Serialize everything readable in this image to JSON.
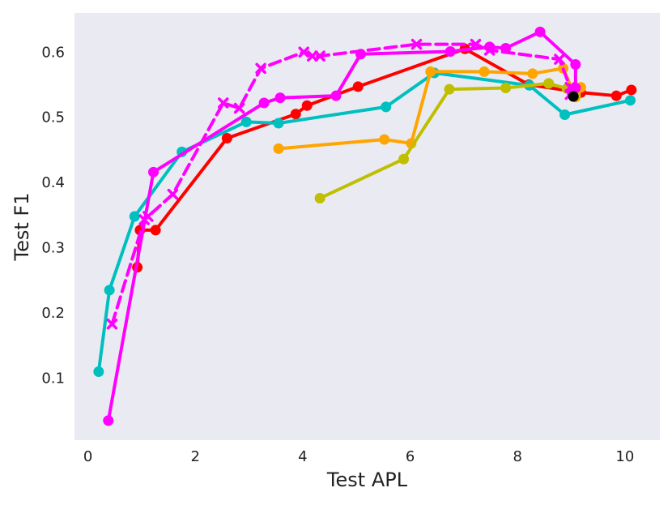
{
  "chart_data": {
    "type": "line",
    "title": "",
    "xlabel": "Test APL",
    "ylabel": "Test F1",
    "xlim": [
      -0.25,
      10.65
    ],
    "ylim": [
      0.005,
      0.66
    ],
    "xticks": [
      0,
      2,
      4,
      6,
      8,
      10
    ],
    "yticks": [
      0.1,
      0.2,
      0.3,
      0.4,
      0.5,
      0.6
    ],
    "xtick_labels": [
      "0",
      "2",
      "4",
      "6",
      "8",
      "10"
    ],
    "ytick_labels": [
      "0.1",
      "0.2",
      "0.3",
      "0.4",
      "0.5",
      "0.6"
    ],
    "grid": false,
    "background": "#eaeaf2",
    "series": [
      {
        "color": "#ff0000",
        "marker": "circle",
        "dash": "solid",
        "points": [
          [
            0.92,
            0.27
          ],
          [
            0.97,
            0.327
          ],
          [
            1.26,
            0.327
          ],
          [
            2.59,
            0.468
          ],
          [
            3.87,
            0.505
          ],
          [
            4.08,
            0.518
          ],
          [
            5.03,
            0.547
          ],
          [
            7.02,
            0.605
          ],
          [
            8.21,
            0.55
          ],
          [
            9.18,
            0.538
          ],
          [
            9.84,
            0.533
          ],
          [
            10.12,
            0.542
          ]
        ]
      },
      {
        "color": "#00bfbf",
        "marker": "circle",
        "dash": "solid",
        "points": [
          [
            0.2,
            0.11
          ],
          [
            0.4,
            0.235
          ],
          [
            0.87,
            0.348
          ],
          [
            1.75,
            0.447
          ],
          [
            2.95,
            0.493
          ],
          [
            3.55,
            0.491
          ],
          [
            5.55,
            0.516
          ],
          [
            6.45,
            0.568
          ],
          [
            8.22,
            0.549
          ],
          [
            8.88,
            0.504
          ],
          [
            10.1,
            0.526
          ]
        ]
      },
      {
        "color": "#ffa500",
        "marker": "circle",
        "dash": "solid",
        "points": [
          [
            3.55,
            0.452
          ],
          [
            5.52,
            0.466
          ],
          [
            6.02,
            0.46
          ],
          [
            6.38,
            0.57
          ],
          [
            7.38,
            0.57
          ],
          [
            8.28,
            0.567
          ],
          [
            8.85,
            0.575
          ],
          [
            9.08,
            0.531
          ],
          [
            9.18,
            0.546
          ],
          [
            9.08,
            0.536
          ]
        ]
      },
      {
        "color": "#bfbf00",
        "marker": "circle",
        "dash": "solid",
        "points": [
          [
            4.32,
            0.376
          ],
          [
            5.88,
            0.436
          ],
          [
            6.73,
            0.543
          ],
          [
            7.78,
            0.545
          ],
          [
            8.58,
            0.552
          ],
          [
            8.92,
            0.544
          ],
          [
            9.08,
            0.533
          ]
        ]
      },
      {
        "color": "#ff00ff",
        "marker": "circle",
        "dash": "solid",
        "points": [
          [
            0.38,
            0.035
          ],
          [
            1.22,
            0.416
          ],
          [
            3.28,
            0.522
          ],
          [
            3.58,
            0.53
          ],
          [
            4.62,
            0.533
          ],
          [
            5.08,
            0.597
          ],
          [
            6.75,
            0.601
          ],
          [
            7.48,
            0.608
          ],
          [
            7.78,
            0.606
          ],
          [
            8.42,
            0.631
          ],
          [
            9.08,
            0.581
          ],
          [
            9.08,
            0.545
          ],
          [
            9.02,
            0.535
          ]
        ]
      },
      {
        "color": "#ff00ff",
        "marker": "x",
        "dash": "dashed",
        "points": [
          [
            0.45,
            0.183
          ],
          [
            1.05,
            0.343
          ],
          [
            1.12,
            0.348
          ],
          [
            1.58,
            0.382
          ],
          [
            2.52,
            0.522
          ],
          [
            2.82,
            0.514
          ],
          [
            3.22,
            0.575
          ],
          [
            4.02,
            0.6
          ],
          [
            4.18,
            0.594
          ],
          [
            4.32,
            0.594
          ],
          [
            6.12,
            0.612
          ],
          [
            7.22,
            0.612
          ],
          [
            7.48,
            0.603
          ],
          [
            8.78,
            0.589
          ],
          [
            8.98,
            0.546
          ],
          [
            8.98,
            0.535
          ]
        ]
      },
      {
        "color": "#000000",
        "marker": "circle",
        "dash": "solid",
        "points": [
          [
            9.04,
            0.532
          ]
        ]
      }
    ]
  }
}
